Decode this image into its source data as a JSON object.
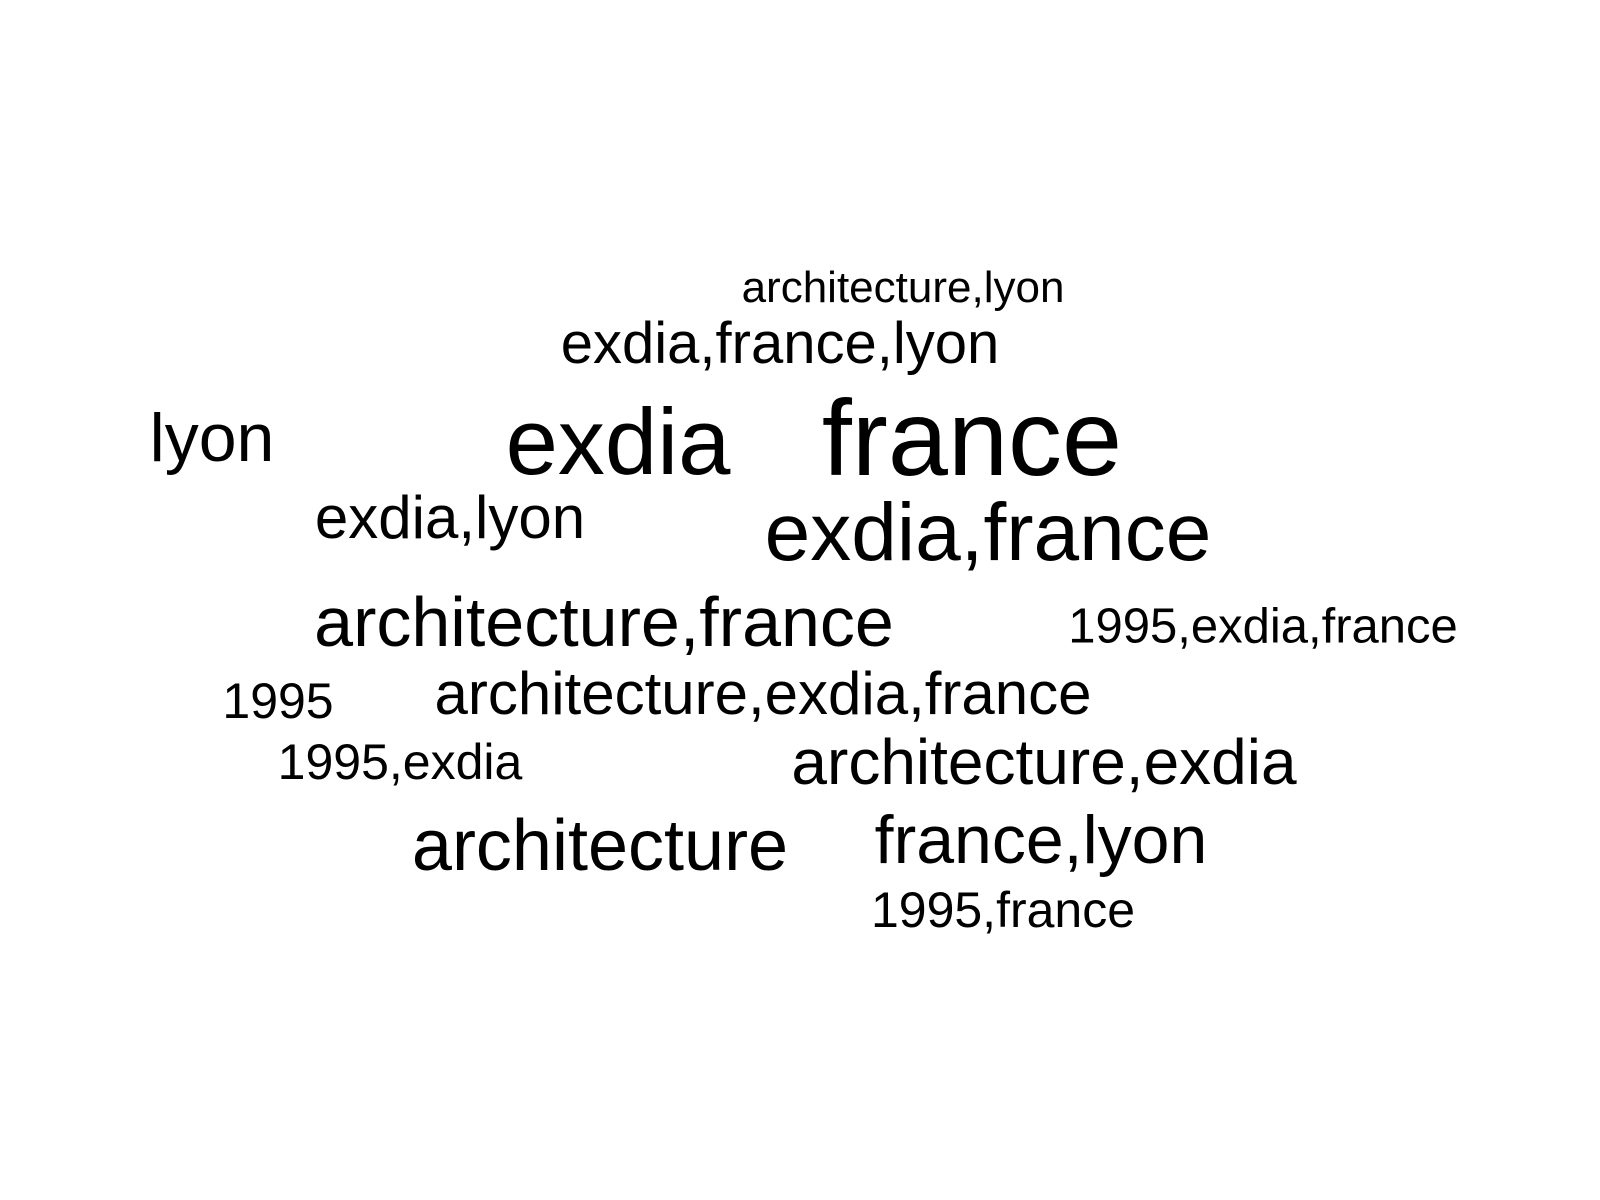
{
  "text_color": "#000000",
  "background_color": "#ffffff",
  "words": [
    {
      "text": "architecture,lyon",
      "weight": 1
    },
    {
      "text": "exdia,france,lyon",
      "weight": 2
    },
    {
      "text": "lyon",
      "weight": 2
    },
    {
      "text": "exdia",
      "weight": 5
    },
    {
      "text": "france",
      "weight": 5
    },
    {
      "text": "exdia,lyon",
      "weight": 2
    },
    {
      "text": "exdia,france",
      "weight": 4
    },
    {
      "text": "architecture,france",
      "weight": 3
    },
    {
      "text": "1995,exdia,france",
      "weight": 1
    },
    {
      "text": "1995",
      "weight": 1
    },
    {
      "text": "architecture,exdia,france",
      "weight": 2
    },
    {
      "text": "1995,exdia",
      "weight": 1
    },
    {
      "text": "architecture,exdia",
      "weight": 2
    },
    {
      "text": "architecture",
      "weight": 3
    },
    {
      "text": "france,lyon",
      "weight": 2
    },
    {
      "text": "1995,france",
      "weight": 1
    }
  ]
}
